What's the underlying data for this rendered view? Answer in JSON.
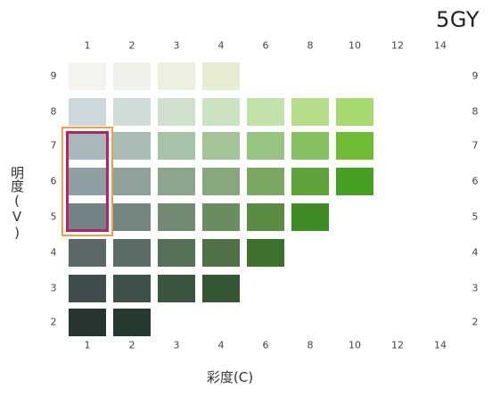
{
  "title": "5GY",
  "x_axis_label": "彩度(C)",
  "y_axis_label": "明度(V)",
  "chroma_ticks": [
    "1",
    "2",
    "3",
    "4",
    "6",
    "8",
    "10",
    "12",
    "14"
  ],
  "value_ticks": [
    "9",
    "8",
    "7",
    "6",
    "5",
    "4",
    "3",
    "2"
  ],
  "highlight": {
    "chroma": "1",
    "values": [
      "7",
      "6",
      "5"
    ],
    "outer_color": "#f0a040",
    "inner_color": "#b0246a"
  },
  "chart_data": {
    "type": "heatmap",
    "title": "5GY",
    "xlabel": "彩度(C)",
    "ylabel": "明度(V)",
    "rows": [
      {
        "value": "9",
        "colors": [
          "#f3f4f0",
          "#eff2ea",
          "#ebf0e0",
          "#e6edd3"
        ]
      },
      {
        "value": "8",
        "colors": [
          "#cdd8dc",
          "#cfdcd6",
          "#cfe1cd",
          "#cce3bf",
          "#c3e2aa",
          "#b6de8a",
          "#a8d970"
        ]
      },
      {
        "value": "7",
        "colors": [
          "#a9b8bc",
          "#a9bcb5",
          "#a8c1a9",
          "#a4c399",
          "#98c482",
          "#86c05e",
          "#6fbb33"
        ]
      },
      {
        "value": "6",
        "colors": [
          "#8e9ea2",
          "#8ea29a",
          "#8ca58c",
          "#87a77c",
          "#7aa762",
          "#5ea33a",
          "#46a024"
        ]
      },
      {
        "value": "5",
        "colors": [
          "#738386",
          "#73877f",
          "#718a71",
          "#6b8c60",
          "#5a8c44",
          "#3f8a25"
        ]
      },
      {
        "value": "4",
        "colors": [
          "#5a6868",
          "#5a6c64",
          "#577058",
          "#517148",
          "#3f712e"
        ]
      },
      {
        "value": "3",
        "colors": [
          "#3f4e4c",
          "#3f524a",
          "#3b5640",
          "#365733"
        ]
      },
      {
        "value": "2",
        "colors": [
          "#283630",
          "#263a30"
        ]
      }
    ]
  }
}
